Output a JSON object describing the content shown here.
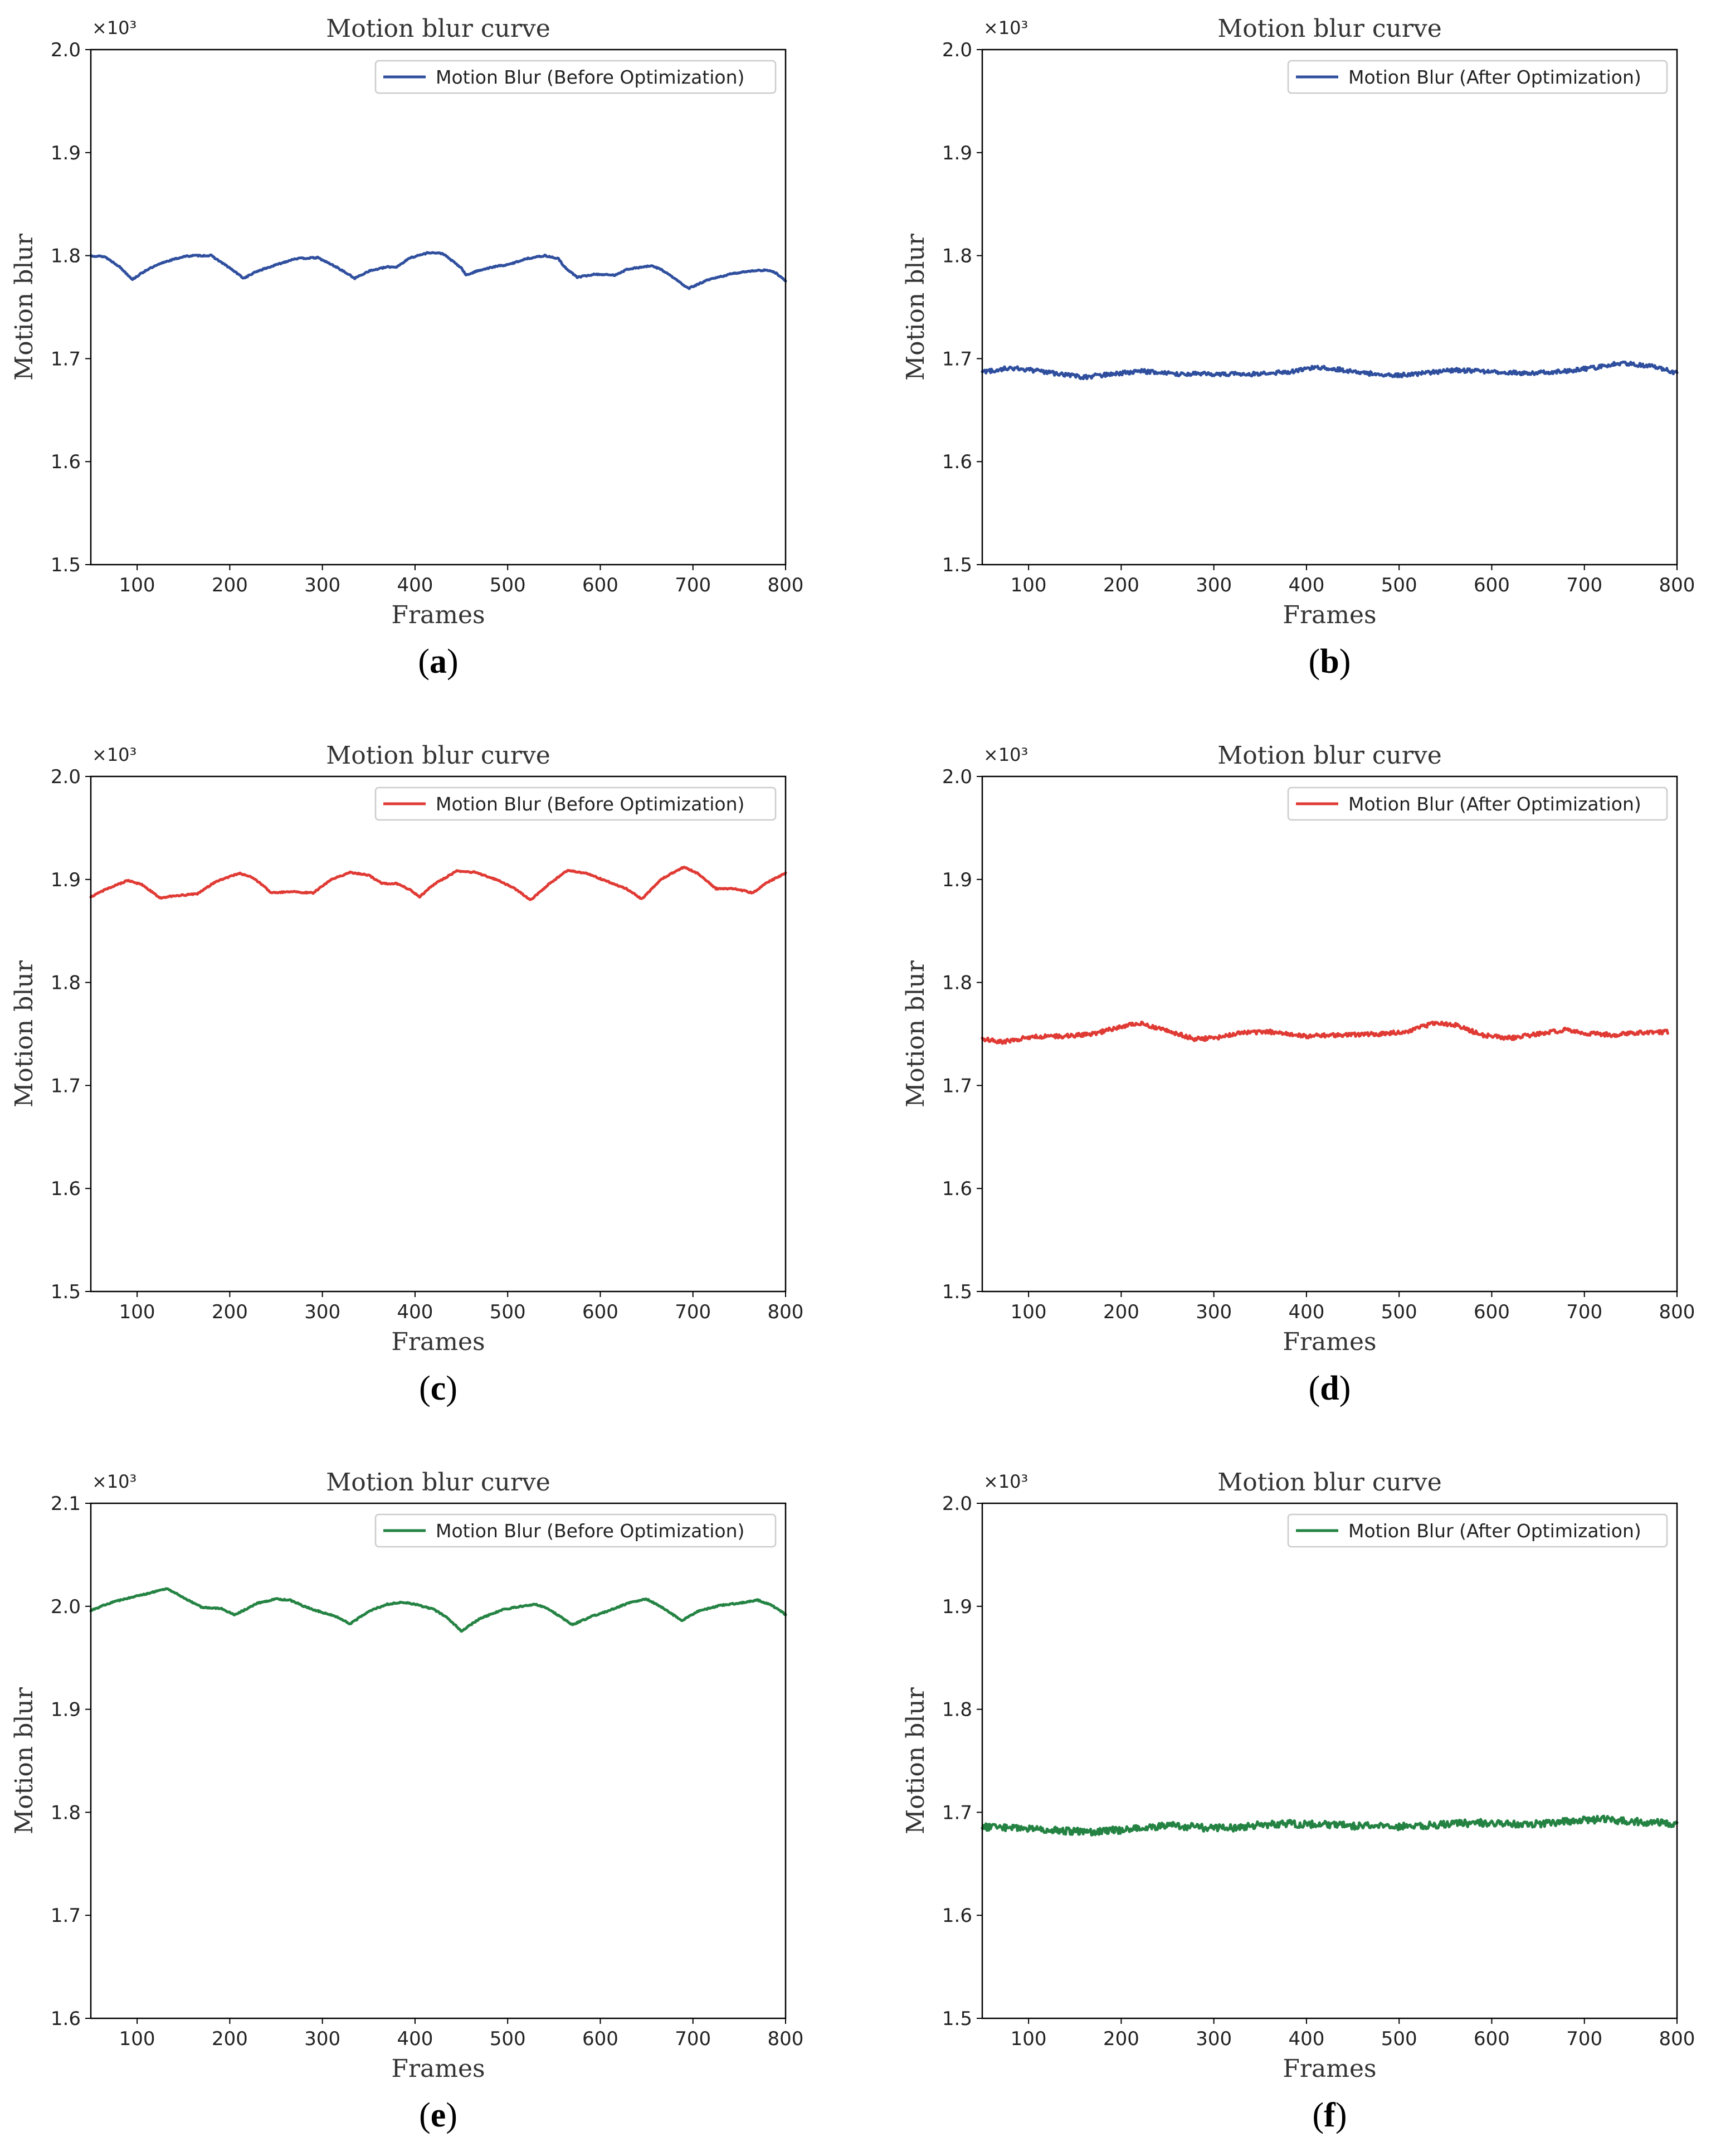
{
  "figure": {
    "description_hidden": false,
    "panels": [
      "a",
      "b",
      "c",
      "d",
      "e",
      "f"
    ]
  },
  "chart_data": [
    {
      "id": "a",
      "type": "line",
      "caption": "a",
      "title": "Motion blur curve",
      "xlabel": "Frames",
      "ylabel": "Motion blur",
      "y_multiplier": "×10³",
      "legend": "Motion Blur (Before Optimization)",
      "legend_placement": "top-right",
      "color": "#2f4f9e",
      "xlim": [
        50,
        800
      ],
      "ylim": [
        1.5,
        2.0
      ],
      "xticks": [
        "100",
        "200",
        "300",
        "400",
        "500",
        "600",
        "700",
        "800"
      ],
      "xtick_values": [
        100,
        200,
        300,
        400,
        500,
        600,
        700,
        800
      ],
      "yticks": [
        "1.5",
        "1.6",
        "1.7",
        "1.8",
        "1.9",
        "2.0"
      ],
      "ytick_values": [
        1.5,
        1.6,
        1.7,
        1.8,
        1.9,
        2.0
      ],
      "noise": 0.0006,
      "points": [
        [
          50,
          1.8
        ],
        [
          65,
          1.799
        ],
        [
          80,
          1.79
        ],
        [
          95,
          1.777
        ],
        [
          110,
          1.786
        ],
        [
          130,
          1.794
        ],
        [
          150,
          1.799
        ],
        [
          160,
          1.8
        ],
        [
          180,
          1.8
        ],
        [
          200,
          1.788
        ],
        [
          215,
          1.778
        ],
        [
          230,
          1.785
        ],
        [
          250,
          1.791
        ],
        [
          270,
          1.797
        ],
        [
          295,
          1.798
        ],
        [
          315,
          1.789
        ],
        [
          335,
          1.778
        ],
        [
          350,
          1.785
        ],
        [
          370,
          1.789
        ],
        [
          380,
          1.789
        ],
        [
          395,
          1.798
        ],
        [
          415,
          1.803
        ],
        [
          430,
          1.802
        ],
        [
          450,
          1.788
        ],
        [
          455,
          1.781
        ],
        [
          470,
          1.786
        ],
        [
          490,
          1.79
        ],
        [
          500,
          1.791
        ],
        [
          520,
          1.797
        ],
        [
          540,
          1.8
        ],
        [
          555,
          1.797
        ],
        [
          560,
          1.79
        ],
        [
          575,
          1.779
        ],
        [
          595,
          1.782
        ],
        [
          615,
          1.781
        ],
        [
          630,
          1.787
        ],
        [
          655,
          1.79
        ],
        [
          665,
          1.787
        ],
        [
          680,
          1.778
        ],
        [
          695,
          1.768
        ],
        [
          715,
          1.776
        ],
        [
          740,
          1.782
        ],
        [
          760,
          1.785
        ],
        [
          780,
          1.786
        ],
        [
          790,
          1.783
        ],
        [
          800,
          1.775
        ]
      ]
    },
    {
      "id": "b",
      "type": "line",
      "caption": "b",
      "title": "Motion blur curve",
      "xlabel": "Frames",
      "ylabel": "Motion blur",
      "y_multiplier": "×10³",
      "legend": "Motion Blur (After Optimization)",
      "legend_placement": "top-right",
      "color": "#2f4f9e",
      "xlim": [
        50,
        800
      ],
      "ylim": [
        1.5,
        2.0
      ],
      "xticks": [
        "100",
        "200",
        "300",
        "400",
        "500",
        "600",
        "700",
        "800"
      ],
      "xtick_values": [
        100,
        200,
        300,
        400,
        500,
        600,
        700,
        800
      ],
      "yticks": [
        "1.5",
        "1.6",
        "1.7",
        "1.8",
        "1.9",
        "2.0"
      ],
      "ytick_values": [
        1.5,
        1.6,
        1.7,
        1.8,
        1.9,
        2.0
      ],
      "noise": 0.002,
      "points": [
        [
          50,
          1.687
        ],
        [
          80,
          1.691
        ],
        [
          110,
          1.688
        ],
        [
          140,
          1.684
        ],
        [
          160,
          1.682
        ],
        [
          190,
          1.685
        ],
        [
          220,
          1.688
        ],
        [
          260,
          1.685
        ],
        [
          300,
          1.685
        ],
        [
          340,
          1.685
        ],
        [
          380,
          1.687
        ],
        [
          410,
          1.692
        ],
        [
          430,
          1.69
        ],
        [
          460,
          1.686
        ],
        [
          500,
          1.684
        ],
        [
          530,
          1.686
        ],
        [
          560,
          1.689
        ],
        [
          600,
          1.687
        ],
        [
          640,
          1.686
        ],
        [
          680,
          1.688
        ],
        [
          710,
          1.691
        ],
        [
          740,
          1.696
        ],
        [
          770,
          1.693
        ],
        [
          790,
          1.689
        ],
        [
          800,
          1.686
        ]
      ]
    },
    {
      "id": "c",
      "type": "line",
      "caption": "c",
      "title": "Motion blur curve",
      "xlabel": "Frames",
      "ylabel": "Motion blur",
      "y_multiplier": "×10³",
      "legend": "Motion Blur (Before Optimization)",
      "legend_placement": "top-right",
      "color": "#e03a34",
      "xlim": [
        50,
        800
      ],
      "ylim": [
        1.5,
        2.0
      ],
      "xticks": [
        "100",
        "200",
        "300",
        "400",
        "500",
        "600",
        "700",
        "800"
      ],
      "xtick_values": [
        100,
        200,
        300,
        400,
        500,
        600,
        700,
        800
      ],
      "yticks": [
        "1.5",
        "1.6",
        "1.7",
        "1.8",
        "1.9",
        "2.0"
      ],
      "ytick_values": [
        1.5,
        1.6,
        1.7,
        1.8,
        1.9,
        2.0
      ],
      "noise": 0.0006,
      "points": [
        [
          50,
          1.883
        ],
        [
          70,
          1.892
        ],
        [
          90,
          1.899
        ],
        [
          105,
          1.895
        ],
        [
          125,
          1.882
        ],
        [
          140,
          1.884
        ],
        [
          165,
          1.886
        ],
        [
          185,
          1.898
        ],
        [
          210,
          1.906
        ],
        [
          225,
          1.902
        ],
        [
          245,
          1.887
        ],
        [
          265,
          1.888
        ],
        [
          290,
          1.887
        ],
        [
          310,
          1.9
        ],
        [
          330,
          1.907
        ],
        [
          350,
          1.904
        ],
        [
          365,
          1.896
        ],
        [
          380,
          1.896
        ],
        [
          395,
          1.89
        ],
        [
          405,
          1.883
        ],
        [
          420,
          1.895
        ],
        [
          445,
          1.908
        ],
        [
          465,
          1.907
        ],
        [
          490,
          1.899
        ],
        [
          508,
          1.891
        ],
        [
          525,
          1.88
        ],
        [
          545,
          1.896
        ],
        [
          565,
          1.909
        ],
        [
          585,
          1.906
        ],
        [
          605,
          1.899
        ],
        [
          628,
          1.891
        ],
        [
          645,
          1.881
        ],
        [
          665,
          1.9
        ],
        [
          690,
          1.912
        ],
        [
          705,
          1.906
        ],
        [
          725,
          1.891
        ],
        [
          745,
          1.891
        ],
        [
          765,
          1.887
        ],
        [
          780,
          1.897
        ],
        [
          800,
          1.906
        ]
      ]
    },
    {
      "id": "d",
      "type": "line",
      "caption": "d",
      "title": "Motion blur curve",
      "xlabel": "Frames",
      "ylabel": "Motion blur",
      "y_multiplier": "×10³",
      "legend": "Motion Blur (After Optimization)",
      "legend_placement": "top-right",
      "color": "#e03a34",
      "xlim": [
        50,
        800
      ],
      "ylim": [
        1.5,
        2.0
      ],
      "xticks": [
        "100",
        "200",
        "300",
        "400",
        "500",
        "600",
        "700",
        "800"
      ],
      "xtick_values": [
        100,
        200,
        300,
        400,
        500,
        600,
        700,
        800
      ],
      "yticks": [
        "1.5",
        "1.6",
        "1.7",
        "1.8",
        "1.9",
        "2.0"
      ],
      "ytick_values": [
        1.5,
        1.6,
        1.7,
        1.8,
        1.9,
        2.0
      ],
      "noise": 0.002,
      "points": [
        [
          50,
          1.745
        ],
        [
          70,
          1.742
        ],
        [
          100,
          1.747
        ],
        [
          140,
          1.748
        ],
        [
          170,
          1.75
        ],
        [
          200,
          1.757
        ],
        [
          220,
          1.761
        ],
        [
          250,
          1.753
        ],
        [
          280,
          1.745
        ],
        [
          300,
          1.746
        ],
        [
          330,
          1.751
        ],
        [
          360,
          1.752
        ],
        [
          400,
          1.748
        ],
        [
          440,
          1.749
        ],
        [
          480,
          1.75
        ],
        [
          510,
          1.753
        ],
        [
          540,
          1.761
        ],
        [
          560,
          1.759
        ],
        [
          590,
          1.749
        ],
        [
          620,
          1.746
        ],
        [
          650,
          1.75
        ],
        [
          680,
          1.754
        ],
        [
          700,
          1.751
        ],
        [
          730,
          1.749
        ],
        [
          760,
          1.751
        ],
        [
          790,
          1.752
        ]
      ]
    },
    {
      "id": "e",
      "type": "line",
      "caption": "e",
      "title": "Motion blur curve",
      "xlabel": "Frames",
      "ylabel": "Motion blur",
      "y_multiplier": "×10³",
      "legend": "Motion Blur (Before Optimization)",
      "legend_placement": "top-right",
      "color": "#248343",
      "xlim": [
        50,
        800
      ],
      "ylim": [
        1.6,
        2.1
      ],
      "xticks": [
        "100",
        "200",
        "300",
        "400",
        "500",
        "600",
        "700",
        "800"
      ],
      "xtick_values": [
        100,
        200,
        300,
        400,
        500,
        600,
        700,
        800
      ],
      "yticks": [
        "1.6",
        "1.7",
        "1.8",
        "1.9",
        "2.0",
        "2.1"
      ],
      "ytick_values": [
        1.6,
        1.7,
        1.8,
        1.9,
        2.0,
        2.1
      ],
      "noise": 0.0006,
      "points": [
        [
          50,
          1.996
        ],
        [
          70,
          2.003
        ],
        [
          90,
          2.008
        ],
        [
          110,
          2.012
        ],
        [
          130,
          2.017
        ],
        [
          135,
          2.016
        ],
        [
          155,
          2.006
        ],
        [
          170,
          1.999
        ],
        [
          190,
          1.998
        ],
        [
          205,
          1.992
        ],
        [
          215,
          1.996
        ],
        [
          230,
          2.003
        ],
        [
          250,
          2.007
        ],
        [
          265,
          2.006
        ],
        [
          280,
          2.0
        ],
        [
          300,
          1.994
        ],
        [
          315,
          1.99
        ],
        [
          330,
          1.983
        ],
        [
          350,
          1.995
        ],
        [
          370,
          2.002
        ],
        [
          385,
          2.004
        ],
        [
          400,
          2.002
        ],
        [
          420,
          1.997
        ],
        [
          435,
          1.989
        ],
        [
          450,
          1.976
        ],
        [
          470,
          1.988
        ],
        [
          495,
          1.997
        ],
        [
          515,
          2.0
        ],
        [
          530,
          2.002
        ],
        [
          545,
          1.997
        ],
        [
          560,
          1.988
        ],
        [
          570,
          1.982
        ],
        [
          590,
          1.99
        ],
        [
          610,
          1.996
        ],
        [
          630,
          2.003
        ],
        [
          650,
          2.007
        ],
        [
          665,
          2.0
        ],
        [
          680,
          1.991
        ],
        [
          688,
          1.986
        ],
        [
          705,
          1.995
        ],
        [
          730,
          2.001
        ],
        [
          750,
          2.003
        ],
        [
          770,
          2.006
        ],
        [
          785,
          2.001
        ],
        [
          800,
          1.992
        ]
      ]
    },
    {
      "id": "f",
      "type": "line",
      "caption": "f",
      "title": "Motion blur curve",
      "xlabel": "Frames",
      "ylabel": "Motion blur",
      "y_multiplier": "×10³",
      "legend": "Motion Blur (After Optimization)",
      "legend_placement": "top-right",
      "color": "#248343",
      "xlim": [
        50,
        800
      ],
      "ylim": [
        1.5,
        2.0
      ],
      "xticks": [
        "100",
        "200",
        "300",
        "400",
        "500",
        "600",
        "700",
        "800"
      ],
      "xtick_values": [
        100,
        200,
        300,
        400,
        500,
        600,
        700,
        800
      ],
      "yticks": [
        "1.5",
        "1.6",
        "1.7",
        "1.8",
        "1.9",
        "2.0"
      ],
      "ytick_values": [
        1.5,
        1.6,
        1.7,
        1.8,
        1.9,
        2.0
      ],
      "noise": 0.0035,
      "points": [
        [
          50,
          1.686
        ],
        [
          80,
          1.685
        ],
        [
          110,
          1.684
        ],
        [
          140,
          1.682
        ],
        [
          170,
          1.681
        ],
        [
          200,
          1.683
        ],
        [
          230,
          1.686
        ],
        [
          260,
          1.687
        ],
        [
          290,
          1.685
        ],
        [
          320,
          1.685
        ],
        [
          350,
          1.688
        ],
        [
          380,
          1.689
        ],
        [
          420,
          1.688
        ],
        [
          450,
          1.687
        ],
        [
          490,
          1.686
        ],
        [
          520,
          1.687
        ],
        [
          560,
          1.689
        ],
        [
          600,
          1.69
        ],
        [
          630,
          1.688
        ],
        [
          660,
          1.689
        ],
        [
          690,
          1.692
        ],
        [
          720,
          1.693
        ],
        [
          760,
          1.691
        ],
        [
          790,
          1.689
        ],
        [
          800,
          1.689
        ]
      ]
    }
  ]
}
